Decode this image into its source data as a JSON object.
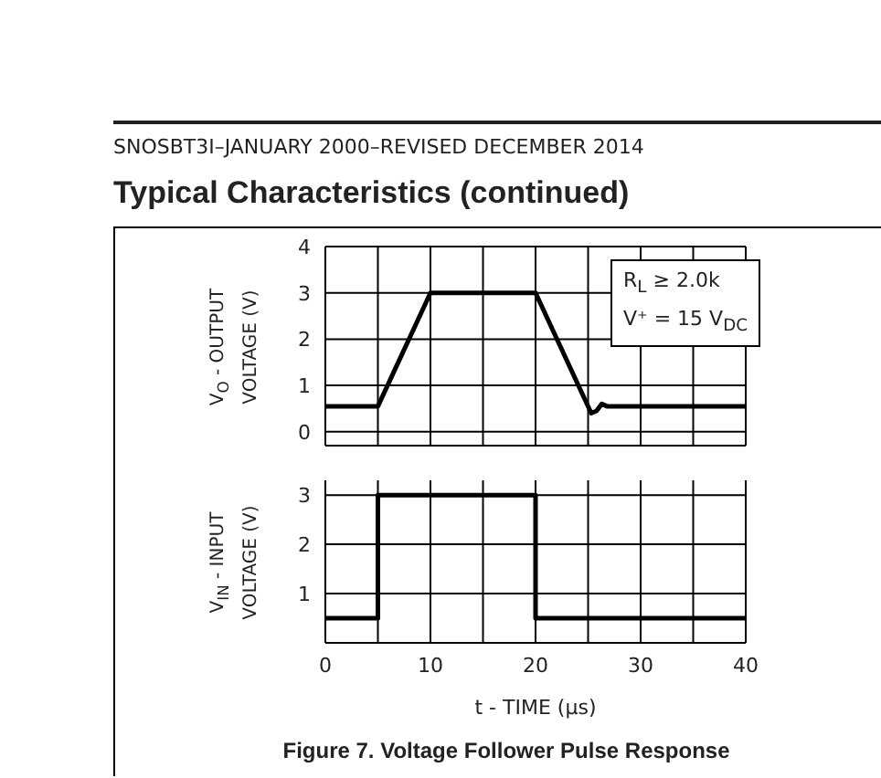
{
  "chart_data": [
    {
      "type": "line",
      "title": "Typical Characteristics (continued)",
      "subtitle": "SNOSBT3I–JANUARY 2000–REVISED DECEMBER 2014",
      "ylabel": "V$_{O}$ - OUTPUT VOLTAGE (V)",
      "series": [
        {
          "color": "#000000",
          "x": [
            0,
            5,
            10,
            20,
            25.3,
            25.8,
            26.3,
            26.8,
            40
          ],
          "values": [
            0.55,
            0.55,
            3,
            3,
            0.4,
            0.45,
            0.6,
            0.55,
            0.55
          ]
        }
      ],
      "xlim": [
        0,
        40
      ],
      "xticks": [
        0,
        {
          "value": 5,
          "label": null
        },
        10,
        {
          "value": 15,
          "label": null
        },
        20,
        {
          "value": 25,
          "label": null
        },
        30,
        {
          "value": 35,
          "label": null
        },
        40
      ],
      "ylim": [
        -0.3,
        4
      ],
      "yticks": [
        0,
        1,
        2,
        3,
        4
      ],
      "grid": true,
      "tick_labels": "y",
      "marker": "none",
      "line_style": "solid",
      "annotations": [
        "R$_{L}$ ≥ 2.0k",
        "V⁺ = 15 V$_{DC}$"
      ]
    },
    {
      "type": "line",
      "xlabel": "t - TIME (µs)",
      "ylabel": "V$_{IN}$ - INPUT VOLTAGE (V)",
      "series": [
        {
          "color": "#000000",
          "x": [
            0,
            5,
            5,
            20,
            20,
            40
          ],
          "values": [
            0.5,
            0.5,
            3,
            3,
            0.5,
            0.5
          ]
        }
      ],
      "xlim": [
        0,
        40
      ],
      "xticks": [
        0,
        {
          "value": 5,
          "label": null
        },
        10,
        {
          "value": 15,
          "label": null
        },
        20,
        {
          "value": 25,
          "label": null
        },
        30,
        {
          "value": 35,
          "label": null
        },
        40
      ],
      "ylim": [
        0,
        3.3
      ],
      "yticks": [
        1,
        2,
        3
      ],
      "grid": true,
      "marker": "none",
      "line_style": "solid",
      "annotations": [
        "Figure 7. Voltage Follower Pulse Response"
      ]
    }
  ]
}
